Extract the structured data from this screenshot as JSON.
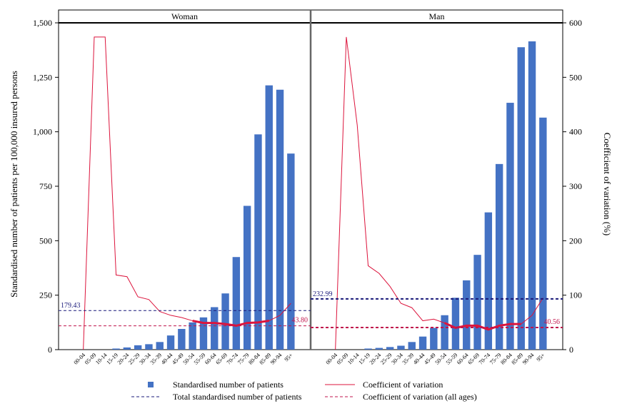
{
  "chart_data": {
    "type": "bar",
    "panels": [
      {
        "name": "Woman",
        "bars": [
          0,
          0,
          0,
          5,
          10,
          20,
          25,
          35,
          65,
          95,
          125,
          148,
          195,
          258,
          425,
          660,
          988,
          1213,
          1193,
          900
        ],
        "cv": [
          0,
          574,
          574,
          137,
          134,
          97,
          92,
          70,
          63,
          59,
          53,
          49,
          49,
          47,
          44,
          49,
          50,
          53,
          63,
          85
        ],
        "cv_thick_from": 10,
        "total_label": "179.43",
        "total_value": 179.43,
        "cv_all_label": "43.80",
        "cv_all_value": 43.8
      },
      {
        "name": "Man",
        "bars": [
          0,
          0,
          0,
          5,
          8,
          12,
          18,
          35,
          60,
          100,
          158,
          238,
          318,
          435,
          630,
          852,
          1133,
          1388,
          1415,
          1065
        ],
        "cv": [
          0,
          574,
          412,
          154,
          140,
          116,
          85,
          77,
          53,
          56,
          49,
          40,
          44,
          44,
          37,
          44,
          47,
          47,
          63,
          95
        ],
        "cv_thick_from": 10,
        "total_label": "232.99",
        "total_value": 232.99,
        "cv_all_label": "40.56",
        "cv_all_value": 40.56
      }
    ],
    "categories": [
      "00-04",
      "05-09",
      "10-14",
      "15-19",
      "20-24",
      "25-29",
      "30-34",
      "35-39",
      "40-44",
      "45-49",
      "50-54",
      "55-59",
      "60-64",
      "65-69",
      "70-74",
      "75-79",
      "80-84",
      "85-89",
      "90-94",
      "95+"
    ],
    "ylabel": "Standardised number of patients per 100,000 insured persons",
    "y2label": "Coefficient of variation (%)",
    "ylim": [
      0,
      1500
    ],
    "y2lim": [
      0,
      600
    ],
    "yticks": [
      "0",
      "250",
      "500",
      "750",
      "1,000",
      "1,250",
      "1,500"
    ],
    "y2ticks": [
      "0",
      "100",
      "200",
      "300",
      "400",
      "500",
      "600"
    ],
    "legend": {
      "bars": "Standardised number of patients",
      "cv": "Coefficient of variation",
      "total": "Total standardised number of patients",
      "cv_all": "Coefficient of variation (all ages)"
    },
    "colors": {
      "bar": "#4472c4",
      "cv": "#dc143c",
      "total": "#1a1a7a",
      "cv_all": "#c0144c"
    }
  }
}
